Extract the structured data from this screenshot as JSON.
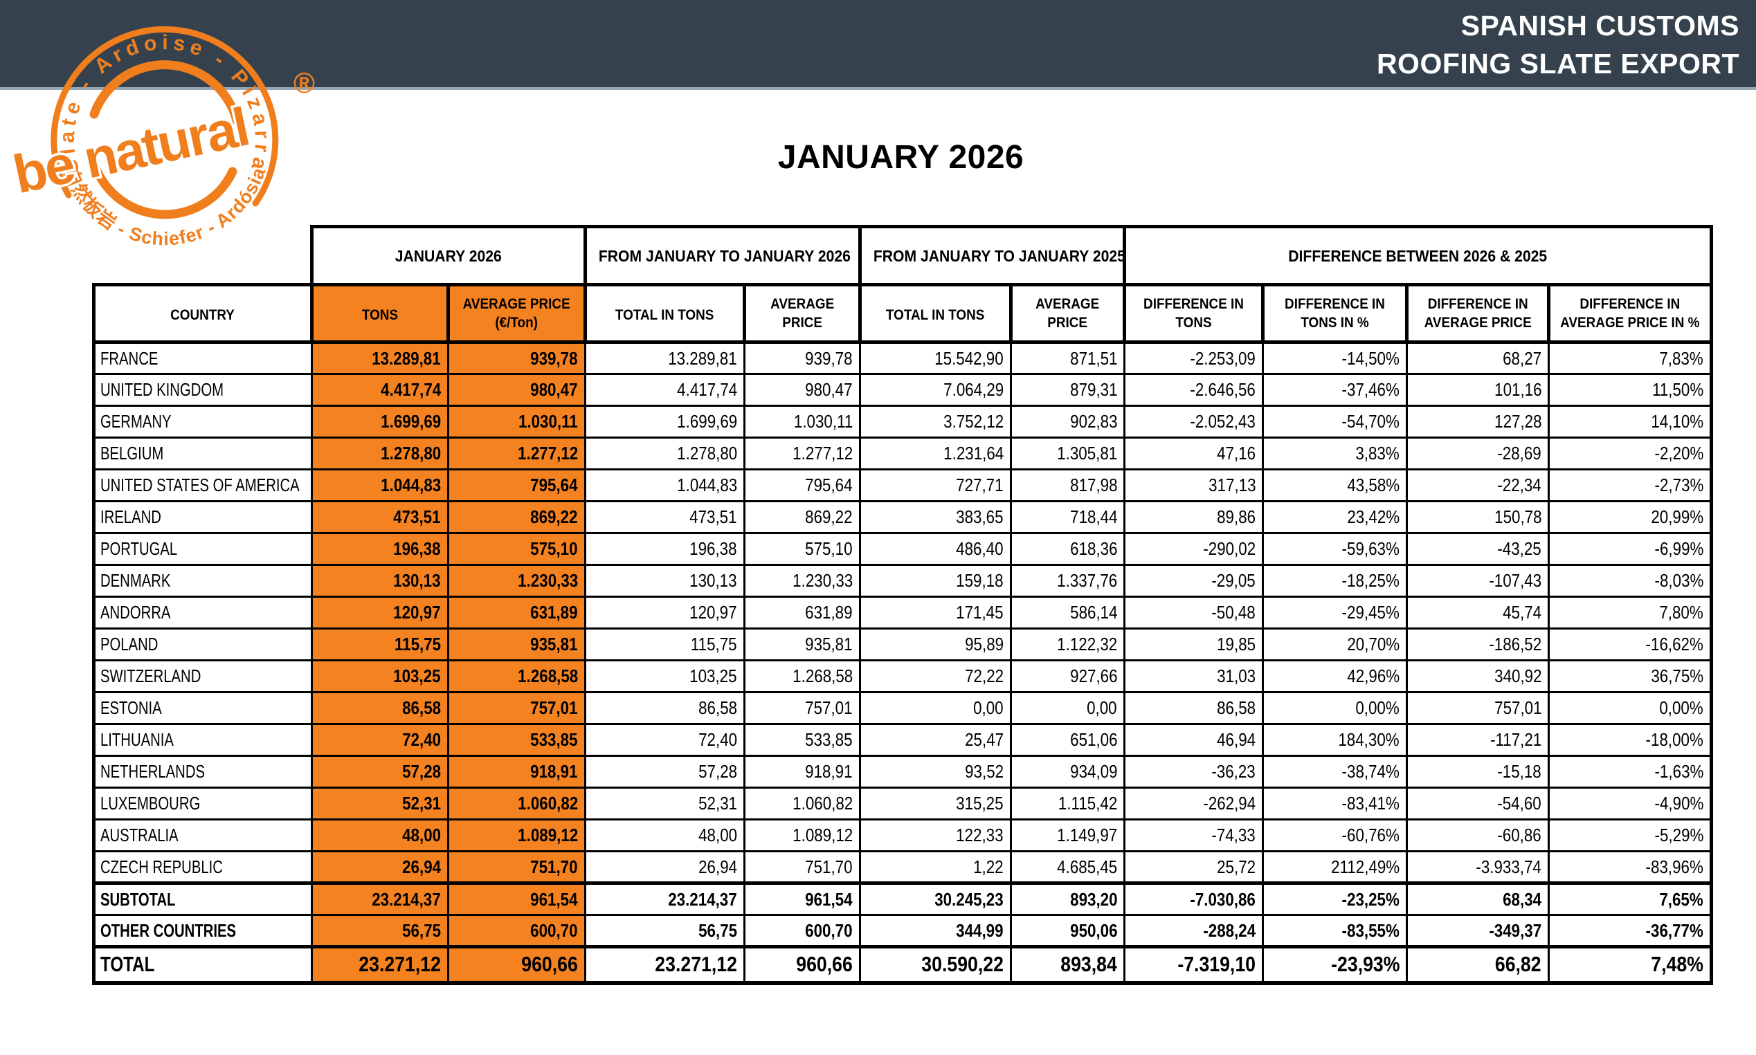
{
  "banner": {
    "line1": "SPANISH CUSTOMS",
    "line2": "ROOFING SLATE EXPORT",
    "bg_color": "#35424E",
    "edge_color": "#96A6B2",
    "text_color": "#FFFFFF"
  },
  "logo": {
    "arc_top": "Slate - Ardoise - Pizarra",
    "main": "be natural",
    "arc_bottom": "自然板岩 - Schiefer - Ardósia",
    "registered": "®",
    "color": "#F07E1D"
  },
  "page_title": "JANUARY 2026",
  "table": {
    "accent": "#F58220",
    "group_headers": [
      {
        "label": "JANUARY 2026"
      },
      {
        "label": "FROM JANUARY TO JANUARY 2026"
      },
      {
        "label": "FROM JANUARY TO JANUARY 2025"
      },
      {
        "label": "DIFFERENCE BETWEEN 2026 & 2025"
      }
    ],
    "columns": [
      {
        "label": "COUNTRY"
      },
      {
        "label": "TONS"
      },
      {
        "label": "AVERAGE PRICE\n(€/Ton)"
      },
      {
        "label": "TOTAL IN TONS"
      },
      {
        "label": "AVERAGE\nPRICE"
      },
      {
        "label": "TOTAL IN TONS"
      },
      {
        "label": "AVERAGE\nPRICE"
      },
      {
        "label": "DIFFERENCE IN\nTONS"
      },
      {
        "label": "DIFFERENCE IN\nTONS IN %"
      },
      {
        "label": "DIFFERENCE IN\nAVERAGE PRICE"
      },
      {
        "label": "DIFFERENCE IN\nAVERAGE PRICE IN %"
      }
    ],
    "rows": [
      {
        "type": "data",
        "country": "FRANCE",
        "values": [
          "13.289,81",
          "939,78",
          "13.289,81",
          "939,78",
          "15.542,90",
          "871,51",
          "-2.253,09",
          "-14,50%",
          "68,27",
          "7,83%"
        ]
      },
      {
        "type": "data",
        "country": "UNITED KINGDOM",
        "values": [
          "4.417,74",
          "980,47",
          "4.417,74",
          "980,47",
          "7.064,29",
          "879,31",
          "-2.646,56",
          "-37,46%",
          "101,16",
          "11,50%"
        ]
      },
      {
        "type": "data",
        "country": "GERMANY",
        "values": [
          "1.699,69",
          "1.030,11",
          "1.699,69",
          "1.030,11",
          "3.752,12",
          "902,83",
          "-2.052,43",
          "-54,70%",
          "127,28",
          "14,10%"
        ]
      },
      {
        "type": "data",
        "country": "BELGIUM",
        "values": [
          "1.278,80",
          "1.277,12",
          "1.278,80",
          "1.277,12",
          "1.231,64",
          "1.305,81",
          "47,16",
          "3,83%",
          "-28,69",
          "-2,20%"
        ]
      },
      {
        "type": "data",
        "country": "UNITED STATES OF AMERICA",
        "values": [
          "1.044,83",
          "795,64",
          "1.044,83",
          "795,64",
          "727,71",
          "817,98",
          "317,13",
          "43,58%",
          "-22,34",
          "-2,73%"
        ]
      },
      {
        "type": "data",
        "country": "IRELAND",
        "values": [
          "473,51",
          "869,22",
          "473,51",
          "869,22",
          "383,65",
          "718,44",
          "89,86",
          "23,42%",
          "150,78",
          "20,99%"
        ]
      },
      {
        "type": "data",
        "country": "PORTUGAL",
        "values": [
          "196,38",
          "575,10",
          "196,38",
          "575,10",
          "486,40",
          "618,36",
          "-290,02",
          "-59,63%",
          "-43,25",
          "-6,99%"
        ]
      },
      {
        "type": "data",
        "country": "DENMARK",
        "values": [
          "130,13",
          "1.230,33",
          "130,13",
          "1.230,33",
          "159,18",
          "1.337,76",
          "-29,05",
          "-18,25%",
          "-107,43",
          "-8,03%"
        ]
      },
      {
        "type": "data",
        "country": "ANDORRA",
        "values": [
          "120,97",
          "631,89",
          "120,97",
          "631,89",
          "171,45",
          "586,14",
          "-50,48",
          "-29,45%",
          "45,74",
          "7,80%"
        ]
      },
      {
        "type": "data",
        "country": "POLAND",
        "values": [
          "115,75",
          "935,81",
          "115,75",
          "935,81",
          "95,89",
          "1.122,32",
          "19,85",
          "20,70%",
          "-186,52",
          "-16,62%"
        ]
      },
      {
        "type": "data",
        "country": "SWITZERLAND",
        "values": [
          "103,25",
          "1.268,58",
          "103,25",
          "1.268,58",
          "72,22",
          "927,66",
          "31,03",
          "42,96%",
          "340,92",
          "36,75%"
        ]
      },
      {
        "type": "data",
        "country": "ESTONIA",
        "values": [
          "86,58",
          "757,01",
          "86,58",
          "757,01",
          "0,00",
          "0,00",
          "86,58",
          "0,00%",
          "757,01",
          "0,00%"
        ]
      },
      {
        "type": "data",
        "country": "LITHUANIA",
        "values": [
          "72,40",
          "533,85",
          "72,40",
          "533,85",
          "25,47",
          "651,06",
          "46,94",
          "184,30%",
          "-117,21",
          "-18,00%"
        ]
      },
      {
        "type": "data",
        "country": "NETHERLANDS",
        "values": [
          "57,28",
          "918,91",
          "57,28",
          "918,91",
          "93,52",
          "934,09",
          "-36,23",
          "-38,74%",
          "-15,18",
          "-1,63%"
        ]
      },
      {
        "type": "data",
        "country": "LUXEMBOURG",
        "values": [
          "52,31",
          "1.060,82",
          "52,31",
          "1.060,82",
          "315,25",
          "1.115,42",
          "-262,94",
          "-83,41%",
          "-54,60",
          "-4,90%"
        ]
      },
      {
        "type": "data",
        "country": "AUSTRALIA",
        "values": [
          "48,00",
          "1.089,12",
          "48,00",
          "1.089,12",
          "122,33",
          "1.149,97",
          "-74,33",
          "-60,76%",
          "-60,86",
          "-5,29%"
        ]
      },
      {
        "type": "data",
        "country": "CZECH REPUBLIC",
        "values": [
          "26,94",
          "751,70",
          "26,94",
          "751,70",
          "1,22",
          "4.685,45",
          "25,72",
          "2112,49%",
          "-3.933,74",
          "-83,96%"
        ]
      },
      {
        "type": "subtotal",
        "country": "SUBTOTAL",
        "values": [
          "23.214,37",
          "961,54",
          "23.214,37",
          "961,54",
          "30.245,23",
          "893,20",
          "-7.030,86",
          "-23,25%",
          "68,34",
          "7,65%"
        ]
      },
      {
        "type": "other",
        "country": "OTHER COUNTRIES",
        "values": [
          "56,75",
          "600,70",
          "56,75",
          "600,70",
          "344,99",
          "950,06",
          "-288,24",
          "-83,55%",
          "-349,37",
          "-36,77%"
        ]
      },
      {
        "type": "total",
        "country": "TOTAL",
        "values": [
          "23.271,12",
          "960,66",
          "23.271,12",
          "960,66",
          "30.590,22",
          "893,84",
          "-7.319,10",
          "-23,93%",
          "66,82",
          "7,48%"
        ]
      }
    ]
  }
}
